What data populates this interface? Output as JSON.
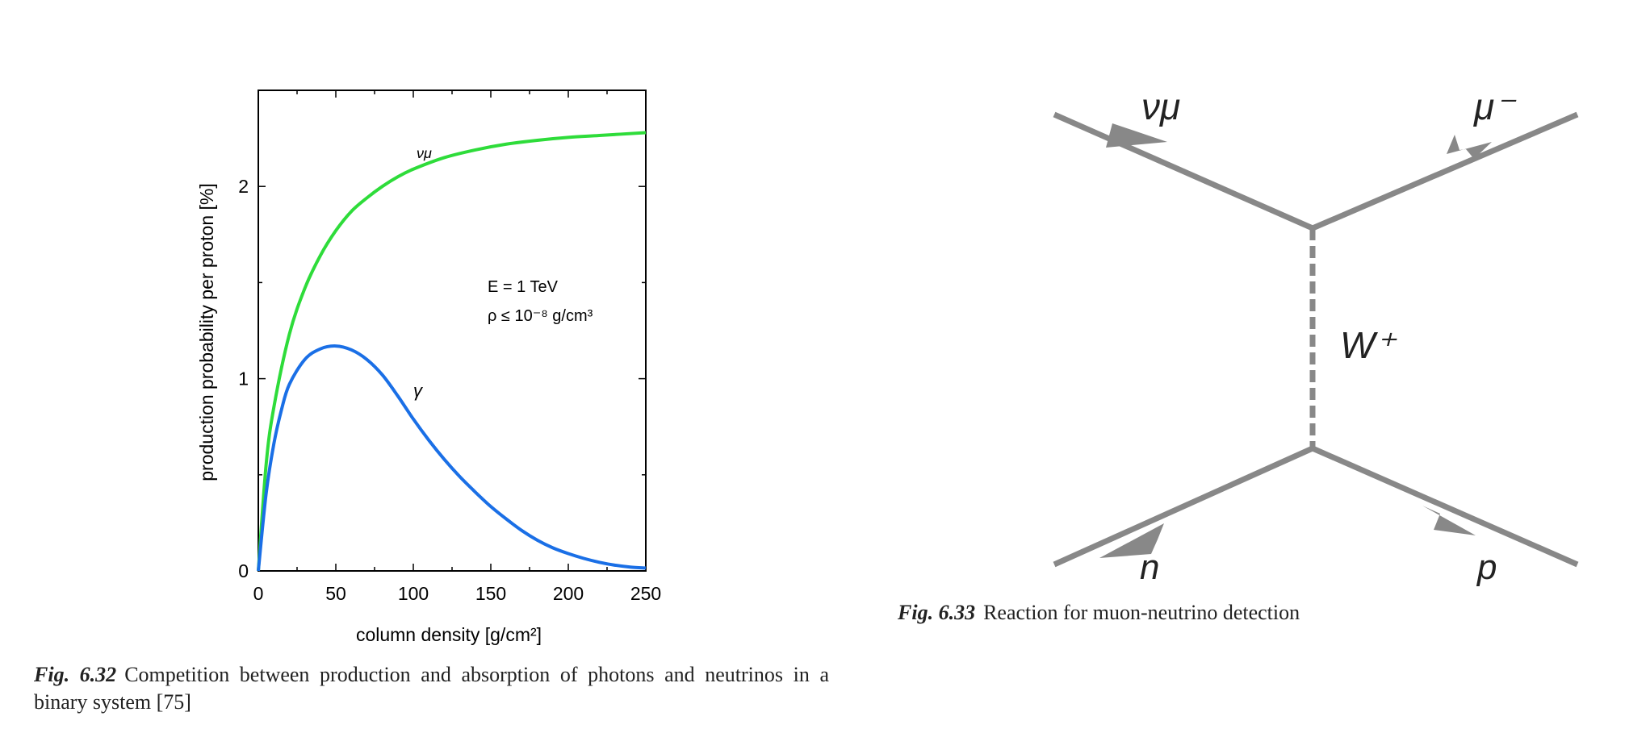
{
  "chart_data": {
    "type": "line",
    "xlabel": "column density [g/cm²]",
    "ylabel": "production probability per proton [%]",
    "xlim": [
      0,
      250
    ],
    "ylim": [
      0,
      2.5
    ],
    "x_ticks": [
      "0",
      "50",
      "100",
      "150",
      "200",
      "250"
    ],
    "y_ticks": [
      "0",
      "1",
      "2"
    ],
    "grid": false,
    "legend": "none",
    "annotations": {
      "energy": "E = 1 TeV",
      "density": "ρ ≤ 10⁻⁸ g/cm³"
    },
    "series": [
      {
        "name": "νμ",
        "color": "#2edc3a",
        "x": [
          0,
          5,
          10,
          20,
          30,
          40,
          50,
          60,
          70,
          80,
          90,
          100,
          120,
          140,
          160,
          180,
          200,
          220,
          250
        ],
        "values": [
          0,
          0.55,
          0.85,
          1.23,
          1.47,
          1.64,
          1.77,
          1.87,
          1.94,
          2.0,
          2.05,
          2.09,
          2.15,
          2.19,
          2.22,
          2.24,
          2.255,
          2.265,
          2.28
        ]
      },
      {
        "name": "γ",
        "color": "#1a6fe6",
        "x": [
          0,
          5,
          10,
          15,
          20,
          30,
          40,
          50,
          60,
          70,
          80,
          90,
          100,
          110,
          120,
          130,
          140,
          150,
          160,
          170,
          180,
          190,
          200,
          210,
          220,
          230,
          240,
          250
        ],
        "values": [
          0,
          0.4,
          0.66,
          0.84,
          0.97,
          1.1,
          1.155,
          1.17,
          1.15,
          1.1,
          1.02,
          0.91,
          0.79,
          0.68,
          0.58,
          0.49,
          0.41,
          0.335,
          0.27,
          0.21,
          0.16,
          0.12,
          0.09,
          0.065,
          0.045,
          0.03,
          0.02,
          0.015
        ]
      }
    ]
  },
  "captions": {
    "fig632_label": "Fig. 6.32",
    "fig632_text": "Competition between production and absorption of photons and neutrinos in a binary system [75]",
    "fig633_label": "Fig. 6.33",
    "fig633_text": "Reaction for muon-neutrino detection"
  },
  "diagram": {
    "particle_in_top": "νμ",
    "particle_out_top": "μ⁻",
    "mediator": "W⁺",
    "particle_in_bottom": "n",
    "particle_out_bottom": "p",
    "line_color": "#888888"
  }
}
